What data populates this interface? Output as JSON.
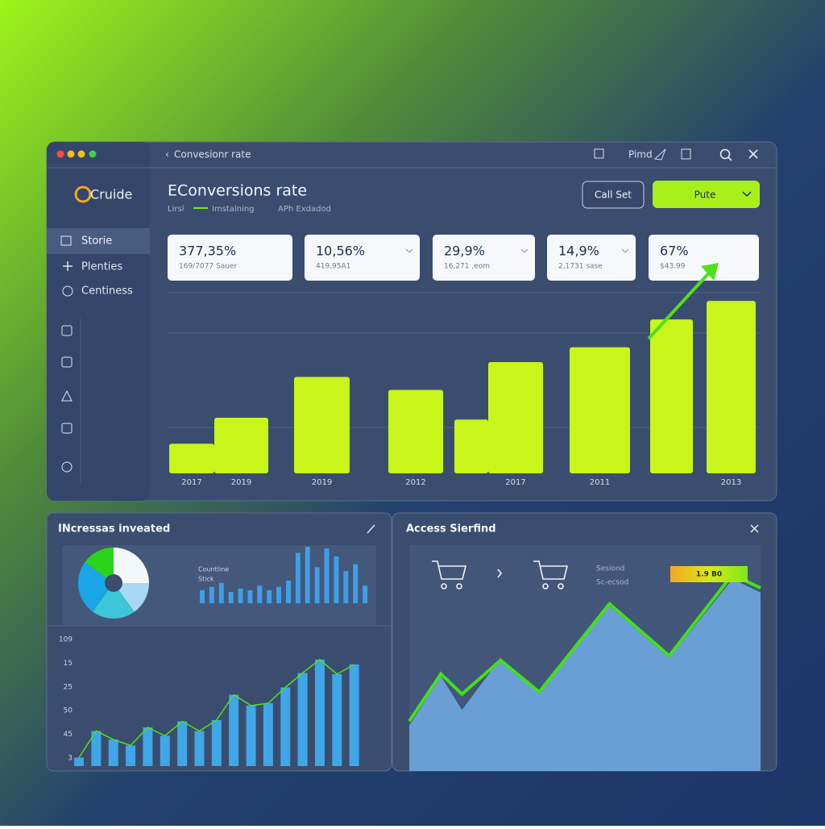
{
  "window": {
    "title": "Convesionr rate",
    "search_label": "Pimd"
  },
  "sidebar": {
    "logo": "Cruide",
    "items": [
      "Storie",
      "Plenties",
      "Centiness"
    ]
  },
  "header": {
    "title": "EConversions rate",
    "filters": [
      "Lirsl",
      "Imstalning",
      "APh Exdadod"
    ],
    "buttons": [
      "Call Set",
      "Pute"
    ]
  },
  "kpis": [
    {
      "value": "377,35%",
      "label": "169/7077 Sauer"
    },
    {
      "value": "10,56%",
      "label": "419,95A1"
    },
    {
      "value": "29,9%",
      "label": "16,271 ,eom"
    },
    {
      "value": "14,9%",
      "label": "2,1731 sase"
    },
    {
      "value": "67%",
      "label": "$43.99"
    }
  ],
  "panels": [
    {
      "title": "INcressas inveated"
    },
    {
      "title": "Access Sierfind",
      "notes": [
        "Sesiond",
        "Sc-ecsod"
      ],
      "badge": "1.9 B0"
    }
  ],
  "chart_data": [
    {
      "type": "bar",
      "categories": [
        "2017",
        "2019",
        "2019",
        "2012",
        null,
        "2017",
        "2011",
        null,
        "2013"
      ],
      "values": [
        16,
        30,
        52,
        45,
        29,
        60,
        68,
        83,
        93
      ],
      "color": "#c8f51a",
      "ylim": [
        0,
        100
      ]
    },
    {
      "type": "pie",
      "values": [
        25,
        15,
        20,
        25,
        15
      ],
      "colors": [
        "#f4f8fb",
        "#a9d8f4",
        "#3cc7d8",
        "#1aa6e6",
        "#2bd41a"
      ]
    },
    {
      "type": "bar",
      "legend": [
        "Countline",
        "Stick"
      ],
      "values": [
        23,
        29,
        36,
        20,
        26,
        23,
        31,
        23,
        29,
        40,
        89,
        100,
        64,
        97,
        83,
        57,
        69,
        31
      ],
      "color": "#3f9fe6",
      "ylim": [
        0,
        100
      ]
    },
    {
      "type": "bar",
      "y_labels": [
        "109",
        "15",
        "25",
        "50",
        "45",
        "3"
      ],
      "values": [
        7,
        29,
        22,
        17,
        32,
        25,
        37,
        29,
        38,
        59,
        50,
        52,
        65,
        77,
        88,
        76,
        84
      ],
      "color": "#3fa6e8",
      "line_color": "#4fe01a",
      "ylim": [
        0,
        100
      ]
    },
    {
      "type": "area",
      "x": [
        0,
        9,
        15,
        26,
        37,
        57,
        74,
        92,
        100
      ],
      "xlim": [
        0,
        100
      ],
      "ylim": [
        0,
        100
      ],
      "series": [
        {
          "type": "area",
          "color": "#6a9fd6",
          "values": [
            20,
            42,
            27,
            50,
            34,
            73,
            50,
            85,
            79
          ]
        },
        {
          "type": "line",
          "color": "#43e01a",
          "values": [
            22,
            43,
            34,
            49,
            35,
            74,
            51,
            87,
            81
          ]
        }
      ]
    }
  ]
}
